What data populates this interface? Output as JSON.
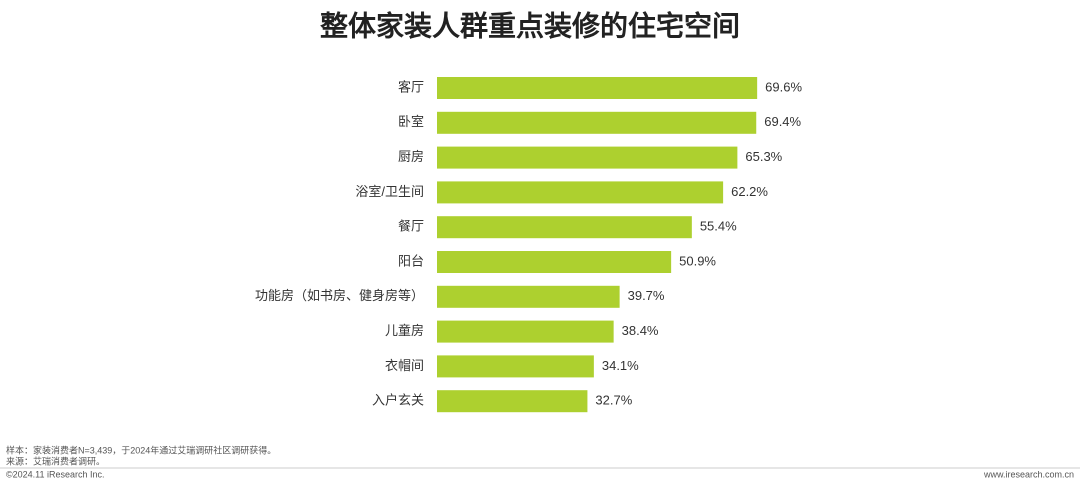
{
  "chart_data": {
    "type": "bar",
    "orientation": "horizontal",
    "title": "整体家装人群重点装修的住宅空间",
    "categories": [
      "客厅",
      "卧室",
      "厨房",
      "浴室/卫生间",
      "餐厅",
      "阳台",
      "功能房（如书房、健身房等）",
      "儿童房",
      "衣帽间",
      "入户玄关"
    ],
    "values": [
      69.6,
      69.4,
      65.3,
      62.2,
      55.4,
      50.9,
      39.7,
      38.4,
      34.1,
      32.7
    ],
    "value_labels": [
      "69.6%",
      "69.4%",
      "65.3%",
      "62.2%",
      "55.4%",
      "50.9%",
      "39.7%",
      "38.4%",
      "34.1%",
      "32.7%"
    ],
    "color": "#add02f"
  },
  "footer": {
    "note": "样本：家装消费者N=3,439，于2024年通过艾瑞调研社区调研获得。",
    "source": "来源：艾瑞消费者调研。",
    "copyright": "©2024.11 iResearch Inc.",
    "website": "www.iresearch.com.cn"
  }
}
